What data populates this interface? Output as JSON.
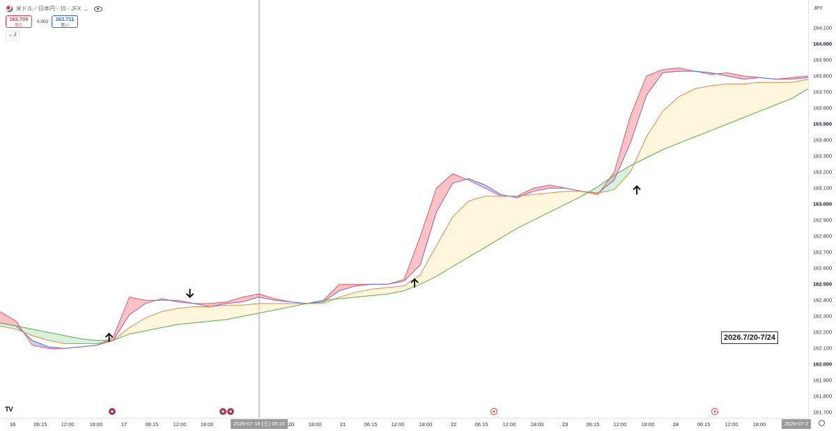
{
  "header": {
    "symbol": "米ドル／日本円 · 15 · JFX",
    "sell_price": "163.709",
    "sell_label": "売り",
    "spread": "0.002",
    "buy_price": "163.711",
    "buy_label": "買い",
    "indicator_count": "2"
  },
  "annotation": "2026.7/20-7/24",
  "logo_text": "TV",
  "chart_data": {
    "type": "line",
    "title": "",
    "currency": "JPY",
    "ylim": [
      161.6,
      164.2
    ],
    "y_ticks": [
      "164.100",
      "164.000",
      "163.900",
      "163.800",
      "163.700",
      "163.600",
      "163.500",
      "163.400",
      "163.300",
      "163.200",
      "163.100",
      "163.000",
      "162.900",
      "162.800",
      "162.700",
      "162.600",
      "162.500",
      "162.400",
      "162.300",
      "162.200",
      "162.100",
      "162.000",
      "161.900",
      "161.800",
      "161.700"
    ],
    "y_ticks_bold": [
      "164.000",
      "163.500",
      "163.000",
      "162.500",
      "162.000"
    ],
    "x_ticks": [
      "16",
      "06:15",
      "12:00",
      "18:00",
      "17",
      "06:15",
      "12:00",
      "18:00",
      "20",
      "18:00",
      "21",
      "06:15",
      "12:00",
      "18:00",
      "22",
      "06:15",
      "12:00",
      "18:00",
      "23",
      "06:15",
      "12:00",
      "18:00",
      "24",
      "06:15",
      "12:00",
      "18:00"
    ],
    "x_day_ticks": [
      "16",
      "17",
      "20",
      "21",
      "22",
      "23",
      "24"
    ],
    "crosshair_label": "2026-07-18 (土)  05:15",
    "right_edge_label": "2026-07-2",
    "x_range": [
      0,
      100
    ],
    "series": [
      {
        "color": "#f7525f",
        "x": [
          0,
          2,
          4,
          6,
          8,
          10,
          12,
          14,
          16,
          18,
          20,
          22,
          24,
          26,
          28,
          30,
          32,
          34,
          36,
          38,
          40,
          42,
          44,
          46,
          48,
          50,
          52,
          54,
          56,
          58,
          60,
          62,
          64,
          66,
          68,
          70,
          72,
          74,
          76,
          78,
          80,
          82,
          84,
          86,
          88,
          90,
          92,
          94,
          96,
          98,
          100
        ],
        "values": [
          162.33,
          162.27,
          162.12,
          162.1,
          162.1,
          162.11,
          162.12,
          162.17,
          162.42,
          162.4,
          162.4,
          162.4,
          162.38,
          162.38,
          162.39,
          162.42,
          162.44,
          162.41,
          162.39,
          162.38,
          162.4,
          162.5,
          162.5,
          162.5,
          162.5,
          162.53,
          162.8,
          163.1,
          163.19,
          163.15,
          163.1,
          163.05,
          163.05,
          163.1,
          163.12,
          163.1,
          163.08,
          163.06,
          163.2,
          163.55,
          163.8,
          163.84,
          163.85,
          163.83,
          163.81,
          163.82,
          163.8,
          163.79,
          163.78,
          163.79,
          163.8
        ]
      },
      {
        "color": "#5b6fe8",
        "x": [
          0,
          2,
          4,
          6,
          8,
          10,
          12,
          14,
          16,
          18,
          20,
          22,
          24,
          26,
          28,
          30,
          32,
          34,
          36,
          38,
          40,
          42,
          44,
          46,
          48,
          50,
          52,
          54,
          56,
          58,
          60,
          62,
          64,
          66,
          68,
          70,
          72,
          74,
          76,
          78,
          80,
          82,
          84,
          86,
          88,
          90,
          92,
          94,
          96,
          98,
          100
        ],
        "values": [
          162.26,
          162.24,
          162.15,
          162.11,
          162.1,
          162.11,
          162.12,
          162.15,
          162.31,
          162.38,
          162.41,
          162.39,
          162.38,
          162.36,
          162.38,
          162.39,
          162.42,
          162.4,
          162.39,
          162.38,
          162.39,
          162.46,
          162.49,
          162.5,
          162.5,
          162.52,
          162.62,
          162.95,
          163.13,
          163.16,
          163.12,
          163.06,
          163.04,
          163.08,
          163.1,
          163.1,
          163.08,
          163.07,
          163.15,
          163.38,
          163.68,
          163.82,
          163.83,
          163.83,
          163.82,
          163.8,
          163.78,
          163.79,
          163.78,
          163.78,
          163.79
        ]
      },
      {
        "color": "#e08a3c",
        "x": [
          0,
          2,
          4,
          6,
          8,
          10,
          12,
          14,
          16,
          18,
          20,
          22,
          24,
          26,
          28,
          30,
          32,
          34,
          36,
          38,
          40,
          42,
          44,
          46,
          48,
          50,
          52,
          54,
          56,
          58,
          60,
          62,
          64,
          66,
          68,
          70,
          72,
          74,
          76,
          78,
          80,
          82,
          84,
          86,
          88,
          90,
          92,
          94,
          96,
          98,
          100
        ],
        "values": [
          162.24,
          162.22,
          162.18,
          162.15,
          162.13,
          162.13,
          162.13,
          162.15,
          162.23,
          162.29,
          162.33,
          162.35,
          162.36,
          162.36,
          162.37,
          162.37,
          162.38,
          162.38,
          162.38,
          162.38,
          162.38,
          162.42,
          162.45,
          162.47,
          162.48,
          162.49,
          162.56,
          162.74,
          162.92,
          163.02,
          163.05,
          163.05,
          163.05,
          163.06,
          163.07,
          163.08,
          163.08,
          163.07,
          163.09,
          163.2,
          163.42,
          163.58,
          163.67,
          163.72,
          163.74,
          163.75,
          163.75,
          163.76,
          163.76,
          163.76,
          163.78
        ]
      },
      {
        "color": "#4caf50",
        "x": [
          0,
          2,
          4,
          6,
          8,
          10,
          12,
          14,
          16,
          18,
          20,
          22,
          24,
          26,
          28,
          30,
          32,
          34,
          36,
          38,
          40,
          42,
          44,
          46,
          48,
          50,
          52,
          54,
          56,
          58,
          60,
          62,
          64,
          66,
          68,
          70,
          72,
          74,
          76,
          78,
          80,
          82,
          84,
          86,
          88,
          90,
          92,
          94,
          96,
          98,
          100
        ],
        "values": [
          162.26,
          162.24,
          162.22,
          162.2,
          162.18,
          162.16,
          162.15,
          162.15,
          162.19,
          162.21,
          162.23,
          162.25,
          162.26,
          162.27,
          162.28,
          162.3,
          162.32,
          162.34,
          162.36,
          162.38,
          162.4,
          162.41,
          162.42,
          162.43,
          162.44,
          162.46,
          162.5,
          162.55,
          162.61,
          162.67,
          162.73,
          162.79,
          162.85,
          162.9,
          162.95,
          163.0,
          163.05,
          163.11,
          163.18,
          163.24,
          163.29,
          163.34,
          163.38,
          163.42,
          163.46,
          163.5,
          163.54,
          163.58,
          163.62,
          163.66,
          163.72
        ]
      }
    ],
    "signals": [
      {
        "direction": "up",
        "x": 13.5,
        "value": 162.14
      },
      {
        "direction": "down",
        "x": 23.5,
        "value": 162.42
      },
      {
        "direction": "up",
        "x": 51.3,
        "value": 162.48
      },
      {
        "direction": "up",
        "x": 78.8,
        "value": 163.06
      }
    ]
  }
}
